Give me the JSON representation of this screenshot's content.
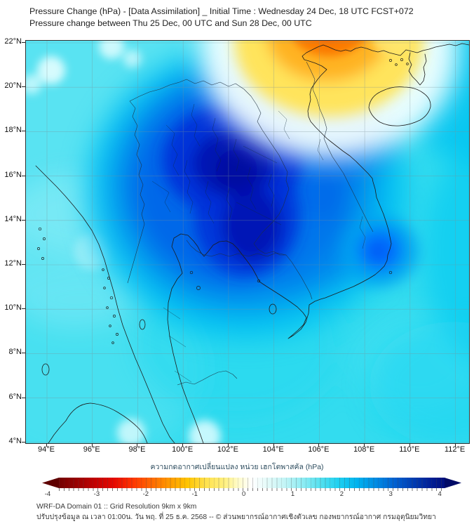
{
  "header": {
    "title_line1": "Pressure Change (hPa) - [Data Assimilation] _ Initial Time : Wednesday 24 Dec, 18 UTC FCST+072",
    "title_line2": "Pressure change between Thu 25 Dec, 00 UTC and Sun 28 Dec, 00 UTC"
  },
  "map": {
    "lat_labels": [
      "22°N",
      "20°N",
      "18°N",
      "16°N",
      "14°N",
      "12°N",
      "10°N",
      "8°N",
      "6°N",
      "4°N"
    ],
    "lon_labels": [
      "94°E",
      "96°E",
      "98°E",
      "100°E",
      "102°E",
      "104°E",
      "106°E",
      "108°E",
      "110°E",
      "112°E"
    ]
  },
  "colorbar": {
    "title": "ความกดอากาศเปลี่ยนแปลง หน่วย เฮกโตพาสคัล (hPa)",
    "ticks": [
      "-4",
      "-3",
      "-2",
      "-1",
      "0",
      "1",
      "2",
      "3",
      "4"
    ]
  },
  "footer": {
    "line1": "WRF-DA Domain 01 :: Grid Resolution 9km x 9km",
    "line2": "ปรับปรุงข้อมูล ณ เวลา 01:00น. วัน พฤ. ที่ 25 ธ.ค. 2568 -- © ส่วนพยากรณ์อากาศเชิงตัวเลข กองพยากรณ์อากาศ กรมอุตุนิยมวิทยา"
  },
  "chart_data": {
    "type": "heatmap",
    "title": "Pressure Change (hPa) - [Data Assimilation] _ Initial Time : Wednesday 24 Dec, 18 UTC FCST+072",
    "subtitle": "Pressure change between Thu 25 Dec, 00 UTC and Sun 28 Dec, 00 UTC",
    "x_axis": {
      "label_units": "°E",
      "ticks": [
        94,
        96,
        98,
        100,
        102,
        104,
        106,
        108,
        110,
        112
      ],
      "range": [
        93.1,
        112.6
      ]
    },
    "y_axis": {
      "label_units": "°N",
      "ticks": [
        22,
        20,
        18,
        16,
        14,
        12,
        10,
        8,
        6,
        4
      ],
      "range": [
        4,
        22
      ]
    },
    "grid": true,
    "colorbar": {
      "label": "ความกดอากาศเปลี่ยนแปลง หน่วย เฮกโตพาสคัล (hPa)",
      "units": "hPa",
      "ticks": [
        -4,
        -3,
        -2,
        -1,
        0,
        1,
        2,
        3,
        4
      ],
      "range": [
        -4.3,
        4.3
      ],
      "palette_negative_to_positive": [
        "#730000",
        "#e60800",
        "#ff6600",
        "#ffc400",
        "#fff07e",
        "#ffffff",
        "#8fecf3",
        "#1ed0f0",
        "#008ce4",
        "#003eb4",
        "#000f7e"
      ]
    },
    "legend_position": "bottom",
    "features": [
      {
        "name": "positive-pressure-change-core",
        "center_lon": 101.8,
        "center_lat": 16.5,
        "value_hpa": 4.0
      },
      {
        "name": "secondary-positive-core",
        "center_lon": 102.5,
        "center_lat": 14.7,
        "value_hpa": 3.8
      },
      {
        "name": "coastal-positive-patch-vietnam",
        "center_lon": 108.7,
        "center_lat": 12.7,
        "value_hpa": 2.5
      },
      {
        "name": "negative-pressure-change-north",
        "center_lon": 105.5,
        "center_lat": 22.5,
        "value_hpa": -2.5
      },
      {
        "name": "background-field",
        "value_hpa": 1.3
      }
    ]
  }
}
